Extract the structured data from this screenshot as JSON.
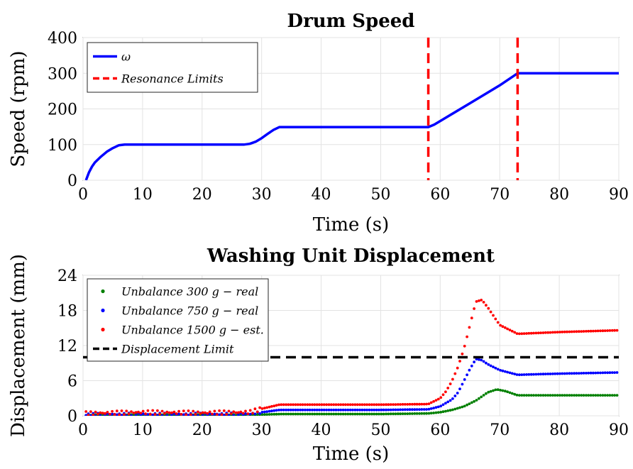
{
  "chart_data": [
    {
      "type": "line",
      "title": "Drum Speed",
      "xlabel": "Time (s)",
      "ylabel": "Speed (rpm)",
      "xlim": [
        0,
        90
      ],
      "ylim": [
        0,
        400
      ],
      "xticks": [
        "0",
        "10",
        "20",
        "30",
        "40",
        "50",
        "60",
        "70",
        "80",
        "90"
      ],
      "yticks": [
        "0",
        "100",
        "200",
        "300",
        "400"
      ],
      "grid": true,
      "legend": "top-left",
      "series": [
        {
          "name": "ω",
          "color": "#0000ff",
          "style": "solid",
          "x": [
            0.5,
            1,
            1.5,
            2,
            3,
            4,
            5,
            6,
            7,
            10,
            20,
            27,
            28,
            29,
            30,
            31,
            32,
            33,
            40,
            50,
            58,
            59,
            60,
            65,
            70,
            73,
            80,
            90
          ],
          "y": [
            0,
            22,
            38,
            50,
            66,
            80,
            90,
            98,
            100,
            100,
            100,
            100,
            102,
            108,
            118,
            130,
            141,
            149,
            149,
            149,
            149,
            156,
            166,
            216,
            266,
            300,
            300,
            300
          ]
        },
        {
          "name": "Resonance Limits",
          "color": "#ff0000",
          "style": "dashed",
          "vlines": [
            58,
            73
          ]
        }
      ]
    },
    {
      "type": "scatter",
      "title": "Washing Unit Displacement",
      "xlabel": "Time (s)",
      "ylabel": "Displacement (mm)",
      "xlim": [
        0,
        90
      ],
      "ylim": [
        0,
        24
      ],
      "xticks": [
        "0",
        "10",
        "20",
        "30",
        "40",
        "50",
        "60",
        "70",
        "80",
        "90"
      ],
      "yticks": [
        "0",
        "6",
        "12",
        "18",
        "24"
      ],
      "grid": true,
      "legend": "top-left",
      "series": [
        {
          "name": "Unbalance 300 g − real",
          "color": "#008000",
          "x": [
            0.5,
            5,
            10,
            20,
            28,
            30,
            33,
            40,
            50,
            58,
            60,
            62,
            64,
            66,
            68,
            69.5,
            71,
            73,
            80,
            90
          ],
          "y": [
            0.1,
            0.15,
            0.15,
            0.15,
            0.15,
            0.2,
            0.3,
            0.3,
            0.3,
            0.4,
            0.6,
            1.0,
            1.6,
            2.6,
            4.0,
            4.5,
            4.2,
            3.5,
            3.5,
            3.5
          ]
        },
        {
          "name": "Unbalance 750 g − real",
          "color": "#0000ff",
          "x": [
            0.5,
            5,
            10,
            20,
            28,
            30,
            33,
            40,
            50,
            58,
            60,
            62,
            63,
            64,
            65,
            66,
            67,
            68,
            70,
            73,
            80,
            90
          ],
          "y": [
            0.2,
            0.25,
            0.25,
            0.25,
            0.3,
            0.6,
            1.0,
            1.0,
            1.0,
            1.1,
            1.6,
            2.8,
            4.0,
            6.0,
            8.0,
            9.7,
            9.5,
            8.8,
            7.8,
            7.0,
            7.2,
            7.4
          ]
        },
        {
          "name": "Unbalance 1500 g − est.",
          "color": "#ff0000",
          "x": [
            0.5,
            5,
            10,
            20,
            28,
            30,
            33,
            40,
            50,
            58,
            60,
            61,
            62,
            63,
            64,
            65,
            66,
            67,
            68,
            70,
            73,
            80,
            90
          ],
          "y": [
            0.4,
            0.5,
            0.6,
            0.5,
            0.6,
            1.2,
            1.9,
            1.9,
            1.9,
            2.0,
            3.0,
            4.2,
            6.0,
            8.4,
            11.5,
            15.5,
            19.5,
            19.8,
            18.5,
            15.5,
            14.0,
            14.3,
            14.6
          ]
        },
        {
          "name": "Displacement Limit",
          "color": "#000000",
          "style": "dashed",
          "hline": 10
        }
      ]
    }
  ]
}
